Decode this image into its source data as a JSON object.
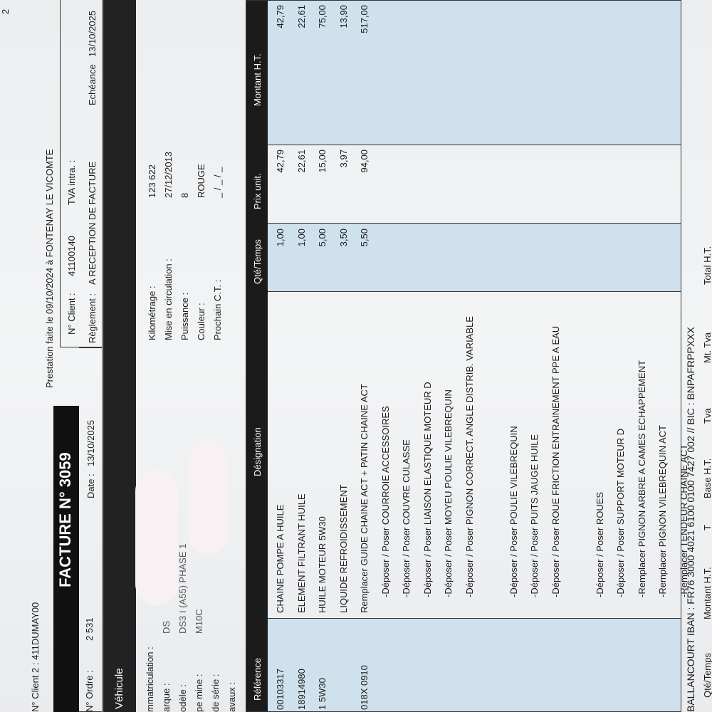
{
  "header": {
    "client2": "N° Client 2 : 411DUMAY00",
    "invoice_title": "FACTURE N° 3059",
    "prestation": "Prestation faite le 09/10/2024 à FONTENAY LE VICOMTE",
    "page": "2",
    "order_label": "N° Ordre :",
    "order_value": "2 531",
    "date_label": "Date :",
    "date_value": "13/10/2025",
    "client_label": "N° Client :",
    "client_value": "41100140",
    "vat_label": "TVA intra. :",
    "payment_label": "Règlement :",
    "payment_value": "A RECEPTION DE FACTURE",
    "due_label": "Echéance",
    "due_value": "13/10/2025"
  },
  "vehicle": {
    "title": "Véhicule",
    "left_fields": [
      {
        "label": "mmatriculation :"
      },
      {
        "label": "arque :",
        "value": "DS"
      },
      {
        "label": "odèle :",
        "value": "DS3 I (A55) PHASE 1"
      },
      {
        "label": "pe mine :",
        "value": "M10C"
      },
      {
        "label": "de série :"
      },
      {
        "label": "avaux :"
      }
    ],
    "right_fields": [
      {
        "label": "Kilométrage :",
        "value": "123 622"
      },
      {
        "label": "Mise en circulation :",
        "value": "27/12/2013"
      },
      {
        "label": "Puissance :",
        "value": "8"
      },
      {
        "label": "Couleur :",
        "value": "ROUGE"
      },
      {
        "label": "Prochain C.T. :",
        "value": "_ / _ / _"
      }
    ]
  },
  "table": {
    "columns": [
      "Référence",
      "Désignation",
      "Qté/Temps",
      "Prix unit.",
      "Montant H.T."
    ],
    "rows": [
      {
        "reference": "00103317",
        "designation": "CHAINE POMPE A HUILE",
        "quantity": "1,00",
        "unit_price": "42,79",
        "amount": "42,79"
      },
      {
        "reference": "18914980",
        "designation": "ELEMENT FILTRANT HUILE",
        "quantity": "1,00",
        "unit_price": "22,61",
        "amount": "22,61"
      },
      {
        "reference": "1 5W30",
        "designation": "HUILE MOTEUR 5W30",
        "quantity": "5,00",
        "unit_price": "15,00",
        "amount": "75,00"
      },
      {
        "designation": "LIQUIDE REFROIDISSEMENT",
        "quantity": "3,50",
        "unit_price": "3,97",
        "amount": "13,90"
      },
      {
        "reference": "018X 0910",
        "designation": "Remplacer GUIDE CHAINE ACT + PATIN CHAINE ACT",
        "quantity": "5,50",
        "unit_price": "94,00",
        "amount": "517,00"
      },
      {
        "designation": "-Déposer / Poser COURROIE ACCESSOIRES"
      },
      {
        "designation": "-Déposer / Poser COUVRE CULASSE"
      },
      {
        "designation": "-Déposer / Poser LIAISON ELASTIQUE MOTEUR D"
      },
      {
        "designation": "-Déposer / Poser MOYEU POULIE VILEBREQUIN"
      },
      {
        "designation": "-Déposer / Poser PIGNON CORRECT. ANGLE DISTRIB. VARIABLE"
      },
      {
        "designation": "-Déposer / Poser POULIE VILEBREQUIN"
      },
      {
        "designation": "-Déposer / Poser PUITS JAUGE HUILE"
      },
      {
        "designation": "-Déposer / Poser ROUE FRICTION ENTRAINEMENT PPE A EAU"
      },
      {
        "designation": "-Déposer / Poser ROUES"
      },
      {
        "designation": "-Déposer / Poser SUPPORT MOTEUR D"
      },
      {
        "designation": "-Remplacer PIGNON ARBRE A CAMES ECHAPPEMENT"
      },
      {
        "designation": "-Remplacer PIGNON VILEBREQUIN ACT"
      },
      {
        "designation": "-Remplacer TENDEUR CHAINE ACT"
      }
    ]
  },
  "footer": {
    "bank": "BALLANCOURT   IBAN : FR76 3000 4021 6100 0100 7427 002  // BIC : BNPAFRPPXXX",
    "summary_columns": [
      "Qté/Temps",
      "Montant H.T.",
      "T",
      "Base H.T.",
      "Tva",
      "Mt. Tva",
      "Total H.T."
    ]
  }
}
